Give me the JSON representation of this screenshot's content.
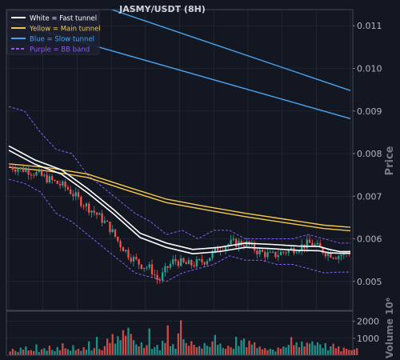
{
  "title": "JASMY/USDT (8H)",
  "chart_data": {
    "type": "candlestick",
    "title": "JASMY/USDT (8H)",
    "ylabel": "Price",
    "volume_label": "Volume  10⁶",
    "ylim": [
      0.00432,
      0.01138
    ],
    "yticks": [
      "0.005",
      "0.006",
      "0.007",
      "0.008",
      "0.009",
      "0.010",
      "0.011"
    ],
    "vol_ylim": [
      0,
      2600
    ],
    "vol_ticks": [
      "1000",
      "2000"
    ],
    "legend_position": "top-left",
    "legend": [
      {
        "label": "White = Fast tunnel",
        "color": "#ffffff",
        "style": "solid"
      },
      {
        "label": "Yellow = Main tunnel",
        "color": "#f5c84c",
        "style": "solid"
      },
      {
        "label": "Blue = Slow tunnel",
        "color": "#4aa3f0",
        "style": "solid"
      },
      {
        "label": "Purple = BB band",
        "color": "#8a5cf5",
        "style": "dashed"
      }
    ],
    "colors": {
      "background": "#131722",
      "grid": "#2a2e39",
      "up": "#26a69a",
      "down": "#ef5350",
      "fast": "#ffffff",
      "main": "#f5c84c",
      "slow": "#4aa3f0",
      "bb": "#8a5cf5",
      "axis_text": "#b2b5be"
    },
    "series": {
      "close_path": [
        [
          0,
          0.0077
        ],
        [
          8,
          0.0076
        ],
        [
          15,
          0.0074
        ],
        [
          22,
          0.0072
        ],
        [
          27,
          0.0069
        ],
        [
          33,
          0.0066
        ],
        [
          38,
          0.0063
        ],
        [
          42,
          0.0059
        ],
        [
          46,
          0.0056
        ],
        [
          50,
          0.0054
        ],
        [
          54,
          0.0053
        ],
        [
          57,
          0.005
        ],
        [
          60,
          0.0053
        ],
        [
          63,
          0.0055
        ],
        [
          67,
          0.0054
        ],
        [
          70,
          0.0054
        ],
        [
          75,
          0.0055
        ],
        [
          80,
          0.0058
        ],
        [
          85,
          0.0059
        ],
        [
          90,
          0.0059
        ],
        [
          95,
          0.0057
        ],
        [
          100,
          0.0056
        ],
        [
          105,
          0.0057
        ],
        [
          110,
          0.0058
        ],
        [
          115,
          0.0059
        ],
        [
          120,
          0.0057
        ],
        [
          125,
          0.0056
        ],
        [
          130,
          0.0057
        ]
      ],
      "fast_a": [
        [
          0,
          0.00818
        ],
        [
          10,
          0.00785
        ],
        [
          20,
          0.00762
        ],
        [
          30,
          0.00718
        ],
        [
          40,
          0.00668
        ],
        [
          50,
          0.00613
        ],
        [
          60,
          0.0059
        ],
        [
          70,
          0.00575
        ],
        [
          80,
          0.0058
        ],
        [
          90,
          0.0059
        ],
        [
          100,
          0.00587
        ],
        [
          110,
          0.00583
        ],
        [
          118,
          0.00582
        ],
        [
          122,
          0.00575
        ],
        [
          126,
          0.0057
        ],
        [
          130,
          0.0057
        ]
      ],
      "fast_b": [
        [
          0,
          0.00808
        ],
        [
          10,
          0.00775
        ],
        [
          20,
          0.00752
        ],
        [
          30,
          0.00708
        ],
        [
          40,
          0.00658
        ],
        [
          50,
          0.00603
        ],
        [
          60,
          0.0058
        ],
        [
          70,
          0.00565
        ],
        [
          80,
          0.0057
        ],
        [
          90,
          0.0058
        ],
        [
          100,
          0.00577
        ],
        [
          110,
          0.00573
        ],
        [
          118,
          0.00572
        ],
        [
          122,
          0.00567
        ],
        [
          126,
          0.00566
        ],
        [
          130,
          0.00566
        ]
      ],
      "main_a": [
        [
          0,
          0.00776
        ],
        [
          15,
          0.00767
        ],
        [
          30,
          0.00752
        ],
        [
          45,
          0.00722
        ],
        [
          60,
          0.00693
        ],
        [
          75,
          0.00676
        ],
        [
          90,
          0.0066
        ],
        [
          105,
          0.00646
        ],
        [
          120,
          0.00632
        ],
        [
          130,
          0.00627
        ]
      ],
      "main_b": [
        [
          0,
          0.00768
        ],
        [
          15,
          0.00759
        ],
        [
          30,
          0.00744
        ],
        [
          45,
          0.00714
        ],
        [
          60,
          0.00685
        ],
        [
          75,
          0.00668
        ],
        [
          90,
          0.00652
        ],
        [
          105,
          0.00638
        ],
        [
          120,
          0.00624
        ],
        [
          130,
          0.00619
        ]
      ],
      "slow_a": [
        [
          0,
          0.0122
        ],
        [
          130,
          0.00948
        ]
      ],
      "slow_b": [
        [
          0,
          0.0111
        ],
        [
          130,
          0.00882
        ]
      ],
      "bb_upper": [
        [
          0,
          0.0091
        ],
        [
          6,
          0.009
        ],
        [
          12,
          0.0085
        ],
        [
          18,
          0.0081
        ],
        [
          24,
          0.008
        ],
        [
          30,
          0.0075
        ],
        [
          36,
          0.0072
        ],
        [
          42,
          0.0069
        ],
        [
          48,
          0.0066
        ],
        [
          54,
          0.0064
        ],
        [
          60,
          0.0061
        ],
        [
          66,
          0.0062
        ],
        [
          72,
          0.006
        ],
        [
          78,
          0.0062
        ],
        [
          84,
          0.0062
        ],
        [
          90,
          0.006
        ],
        [
          96,
          0.006
        ],
        [
          102,
          0.006
        ],
        [
          108,
          0.006
        ],
        [
          114,
          0.0061
        ],
        [
          120,
          0.006
        ],
        [
          126,
          0.0059
        ],
        [
          130,
          0.0059
        ]
      ],
      "bb_lower": [
        [
          0,
          0.0074
        ],
        [
          6,
          0.0073
        ],
        [
          12,
          0.0071
        ],
        [
          18,
          0.0066
        ],
        [
          24,
          0.0064
        ],
        [
          30,
          0.0061
        ],
        [
          36,
          0.0058
        ],
        [
          42,
          0.0055
        ],
        [
          48,
          0.0052
        ],
        [
          54,
          0.0051
        ],
        [
          60,
          0.005
        ],
        [
          66,
          0.0052
        ],
        [
          72,
          0.0053
        ],
        [
          78,
          0.0054
        ],
        [
          84,
          0.0056
        ],
        [
          90,
          0.0055
        ],
        [
          96,
          0.0055
        ],
        [
          102,
          0.0054
        ],
        [
          108,
          0.0054
        ],
        [
          114,
          0.0053
        ],
        [
          120,
          0.0052
        ],
        [
          126,
          0.00522
        ],
        [
          130,
          0.00522
        ]
      ]
    },
    "volume_samples": [
      220,
      380,
      260,
      180,
      450,
      330,
      520,
      280,
      300,
      240,
      640,
      190,
      350,
      420,
      270,
      560,
      310,
      230,
      480,
      290,
      700,
      410,
      350,
      260,
      590,
      300,
      380,
      250,
      470,
      330,
      820,
      280,
      420,
      1080,
      360,
      290,
      540,
      980,
      720,
      1250,
      680,
      1120,
      890,
      1480,
      1150,
      1620,
      1260,
      890,
      640,
      520,
      760,
      430,
      590,
      1580,
      370,
      480,
      610,
      290,
      850,
      720,
      1760,
      540,
      660,
      380,
      1290,
      2060,
      940,
      720,
      560,
      830,
      610,
      470,
      540,
      390,
      720,
      560,
      490,
      820,
      1200,
      610,
      690,
      430,
      380,
      560,
      470,
      380,
      1090,
      540,
      890,
      980,
      470,
      860,
      630,
      760,
      420,
      510,
      350,
      420,
      290,
      380,
      330,
      220,
      460,
      380,
      510,
      460,
      610,
      1070,
      590,
      760,
      470,
      810,
      520,
      740,
      690,
      820,
      580,
      760,
      640,
      420,
      710,
      290,
      520,
      680,
      410,
      520,
      230,
      450,
      380,
      320,
      290,
      340,
      410
    ]
  }
}
